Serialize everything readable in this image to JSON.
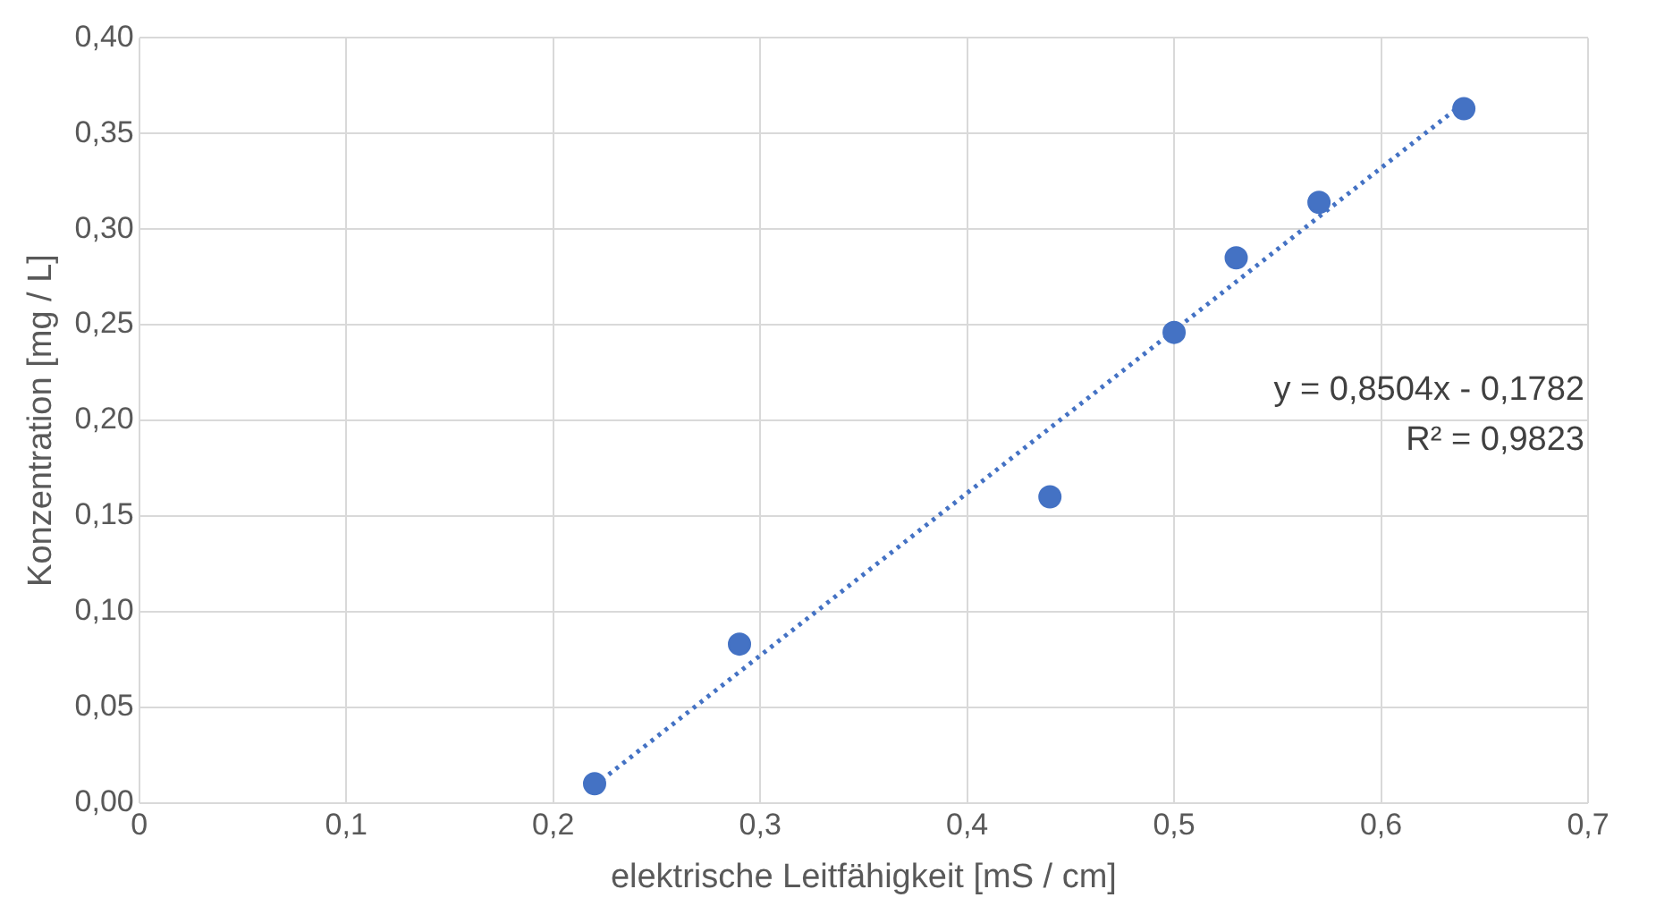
{
  "chart_data": {
    "type": "scatter",
    "xlabel": "elektrische Leitfähigkeit [mS / cm]",
    "ylabel": "Konzentration [mg / L]",
    "xlim": [
      0,
      0.7
    ],
    "ylim": [
      0,
      0.4
    ],
    "xticks": [
      0,
      {
        "value": 0.1,
        "label": "0,1"
      },
      {
        "value": 0.2,
        "label": "0,2"
      },
      {
        "value": 0.3,
        "label": "0,3"
      },
      {
        "value": 0.4,
        "label": "0,4"
      },
      {
        "value": 0.5,
        "label": "0,5"
      },
      {
        "value": 0.6,
        "label": "0,6"
      },
      {
        "value": 0.7,
        "label": "0,7"
      }
    ],
    "yticks": [
      {
        "value": 0,
        "label": "0,00"
      },
      {
        "value": 0.05,
        "label": "0,05"
      },
      {
        "value": 0.1,
        "label": "0,10"
      },
      {
        "value": 0.15,
        "label": "0,15"
      },
      {
        "value": 0.2,
        "label": "0,20"
      },
      {
        "value": 0.25,
        "label": "0,25"
      },
      {
        "value": 0.3,
        "label": "0,30"
      },
      {
        "value": 0.35,
        "label": "0,35"
      },
      {
        "value": 0.4,
        "label": "0,40"
      }
    ],
    "grid": true,
    "legend": false,
    "marker": "circle",
    "series": [
      {
        "type": "scatter",
        "color": "#4472c4",
        "x": [
          0.22,
          0.29,
          0.44,
          0.5,
          0.53,
          0.57,
          0.64
        ],
        "values": [
          0.01,
          0.083,
          0.16,
          0.246,
          0.285,
          0.314,
          0.363
        ]
      },
      {
        "type": "line",
        "color": "#4472c4",
        "line_style": "dotted",
        "marker": "none",
        "x": [
          0.22,
          0.64
        ],
        "values": [
          0.009,
          0.366
        ]
      }
    ],
    "annotations": [
      "y = 0,8504x - 0,1782",
      "R² = 0,9823"
    ]
  }
}
